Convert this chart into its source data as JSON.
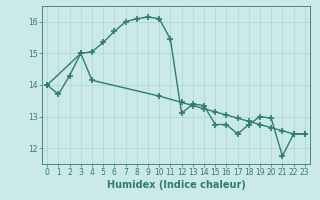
{
  "line1_x": [
    0,
    1,
    2,
    3,
    4,
    5,
    6,
    7,
    8,
    9,
    10,
    11,
    12,
    13,
    14,
    15,
    16,
    17,
    18,
    19,
    20,
    21,
    22,
    23
  ],
  "line1_y": [
    14.0,
    13.7,
    14.3,
    15.0,
    15.05,
    15.35,
    15.7,
    16.0,
    16.1,
    16.15,
    16.1,
    15.45,
    13.1,
    13.4,
    13.35,
    12.75,
    12.75,
    12.45,
    12.75,
    13.0,
    12.95,
    11.75,
    12.45,
    12.45
  ],
  "line2_x": [
    0,
    3,
    4,
    10,
    12,
    13,
    14,
    15,
    16,
    17,
    18,
    19,
    20,
    21,
    22,
    23
  ],
  "line2_y": [
    14.0,
    15.0,
    14.15,
    13.65,
    13.45,
    13.35,
    13.25,
    13.15,
    13.05,
    12.95,
    12.85,
    12.75,
    12.65,
    12.55,
    12.45,
    12.45
  ],
  "color": "#2e7d6e",
  "bg_color": "#cce9ea",
  "grid_color": "#aad4d4",
  "xlabel": "Humidex (Indice chaleur)",
  "ylim": [
    11.5,
    16.5
  ],
  "xlim": [
    -0.5,
    23.5
  ],
  "yticks": [
    12,
    13,
    14,
    15,
    16
  ],
  "xticks": [
    0,
    1,
    2,
    3,
    4,
    5,
    6,
    7,
    8,
    9,
    10,
    11,
    12,
    13,
    14,
    15,
    16,
    17,
    18,
    19,
    20,
    21,
    22,
    23
  ],
  "tick_fontsize": 5.5,
  "xlabel_fontsize": 7,
  "marker": "+",
  "markersize": 4,
  "linewidth": 1.0
}
